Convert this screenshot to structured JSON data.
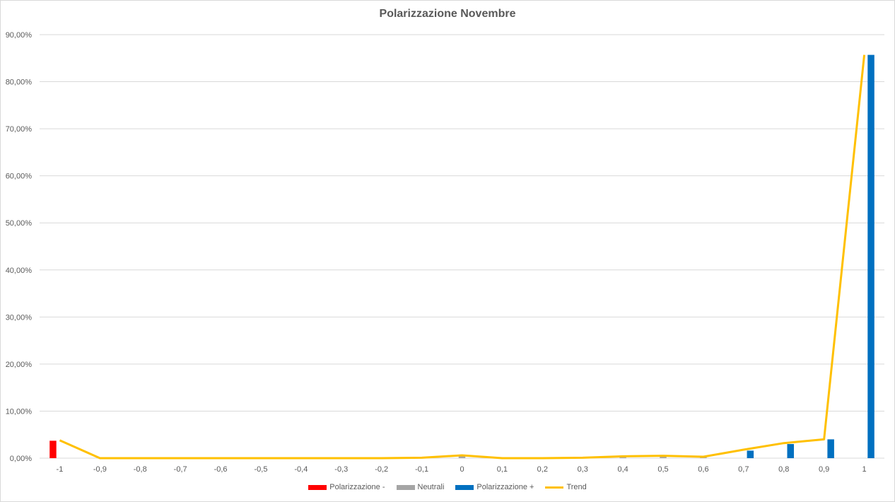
{
  "chart_data": {
    "type": "bar",
    "title": "Polarizzazione Novembre",
    "categories": [
      "-1",
      "-0,9",
      "-0,8",
      "-0,7",
      "-0,6",
      "-0,5",
      "-0,4",
      "-0,3",
      "-0,2",
      "-0,1",
      "0",
      "0,1",
      "0,2",
      "0,3",
      "0,4",
      "0,5",
      "0,6",
      "0,7",
      "0,8",
      "0,9",
      "1"
    ],
    "ylim": [
      0,
      90
    ],
    "y_ticks": [
      0,
      10,
      20,
      30,
      40,
      50,
      60,
      70,
      80,
      90
    ],
    "y_tick_labels": [
      "0,00%",
      "10,00%",
      "20,00%",
      "30,00%",
      "40,00%",
      "50,00%",
      "60,00%",
      "70,00%",
      "80,00%",
      "90,00%"
    ],
    "grid": true,
    "legend_position": "bottom",
    "series": [
      {
        "name": "Polarizzazione -",
        "color": "#ff0000",
        "kind": "bar",
        "values": [
          3.7,
          0,
          0,
          0,
          0,
          0,
          0,
          0,
          0,
          0,
          0,
          0,
          0,
          0,
          0,
          0,
          0,
          0,
          0,
          0,
          0
        ]
      },
      {
        "name": "Neutrali",
        "color": "#a5a5a5",
        "kind": "bar",
        "values": [
          0,
          0,
          0,
          0,
          0,
          0,
          0,
          0,
          0,
          0.1,
          0.5,
          0,
          0,
          0.1,
          0.2,
          0.3,
          0.3,
          0,
          0,
          0,
          0
        ]
      },
      {
        "name": "Polarizzazione +",
        "color": "#0070c0",
        "kind": "bar",
        "values": [
          0,
          0,
          0,
          0,
          0,
          0,
          0,
          0,
          0,
          0,
          0,
          0,
          0,
          0,
          0,
          0,
          0,
          1.6,
          3.0,
          4.0,
          85.7
        ]
      },
      {
        "name": "Trend",
        "color": "#ffc000",
        "kind": "line",
        "values": [
          3.8,
          0,
          0,
          0,
          0,
          0,
          0,
          0,
          0,
          0.1,
          0.6,
          0,
          0,
          0.1,
          0.4,
          0.5,
          0.3,
          1.8,
          3.2,
          4.0,
          85.7
        ]
      }
    ]
  }
}
